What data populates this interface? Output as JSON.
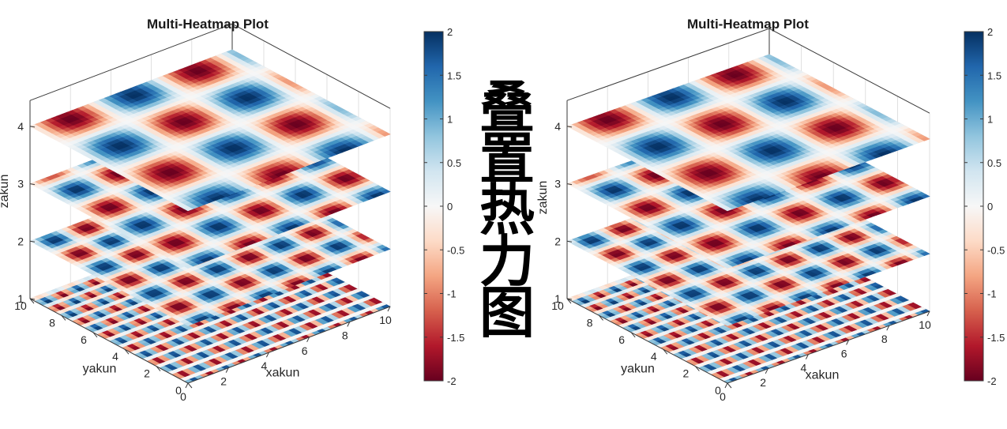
{
  "banner": {
    "chars": [
      "叠",
      "置",
      "热",
      "力",
      "图"
    ]
  },
  "colorscale": {
    "name": "RdBu",
    "stops": [
      "#67001f",
      "#b2182b",
      "#d6604d",
      "#f4a582",
      "#fddbc7",
      "#f7f7f7",
      "#d1e5f0",
      "#92c5de",
      "#4393c3",
      "#2166ac",
      "#053061"
    ]
  },
  "chart_data": [
    {
      "type": "heatmap",
      "subtype": "stacked-3d-surface-slices",
      "title": "Multi-Heatmap Plot",
      "xlabel": "xakun",
      "ylabel": "yakun",
      "zlabel": "zakun",
      "xlim": [
        0,
        10
      ],
      "ylim": [
        0,
        10
      ],
      "zlim": [
        1,
        4
      ],
      "x_ticks": [
        "0",
        "2",
        "4",
        "6",
        "8",
        "10"
      ],
      "y_ticks": [
        "0",
        "2",
        "4",
        "6",
        "8",
        "10"
      ],
      "z_ticks": [
        "1",
        "2",
        "3",
        "4"
      ],
      "layers": [
        {
          "z": 1,
          "function": "2*sin(x*k)*cos(y*k)",
          "frequency": 4
        },
        {
          "z": 2,
          "function": "2*sin(x*k)*cos(y*k)",
          "frequency": 2
        },
        {
          "z": 3,
          "function": "2*sin(x*k)*cos(y*k)",
          "frequency": 1.5
        },
        {
          "z": 4,
          "function": "2*sin(x*k)*cos(y*k)",
          "frequency": 1
        }
      ],
      "colorbar": {
        "range": [
          -2,
          2
        ],
        "ticks": [
          "2",
          "1.5",
          "1",
          "0.5",
          "0",
          "-0.5",
          "-1",
          "-1.5",
          "-2"
        ]
      },
      "grid": true
    },
    {
      "type": "heatmap",
      "subtype": "stacked-3d-surface-slices",
      "title": "Multi-Heatmap Plot",
      "xlabel": "xakun",
      "ylabel": "yakun",
      "zlabel": "zakun",
      "xlim": [
        0,
        10
      ],
      "ylim": [
        0,
        10
      ],
      "zlim": [
        1,
        4
      ],
      "x_ticks": [
        "0",
        "2",
        "4",
        "6",
        "8",
        "10"
      ],
      "y_ticks": [
        "0",
        "2",
        "4",
        "6",
        "8",
        "10"
      ],
      "z_ticks": [
        "1",
        "2",
        "3",
        "4"
      ],
      "layers": [
        {
          "z": 1,
          "function": "2*sin(x*k)*cos(y*k)",
          "frequency": 4
        },
        {
          "z": 2,
          "function": "2*sin(x*k)*cos(y*k)",
          "frequency": 2
        },
        {
          "z": 3,
          "function": "2*sin(x*k)*cos(y*k)",
          "frequency": 1.5
        },
        {
          "z": 4,
          "function": "2*sin(x*k)*cos(y*k)",
          "frequency": 1
        }
      ],
      "colorbar": {
        "range": [
          -2,
          2
        ],
        "ticks": [
          "2",
          "1.5",
          "1",
          "0.5",
          "0",
          "-0.5",
          "-1",
          "-1.5",
          "-2"
        ]
      },
      "grid": true
    }
  ]
}
